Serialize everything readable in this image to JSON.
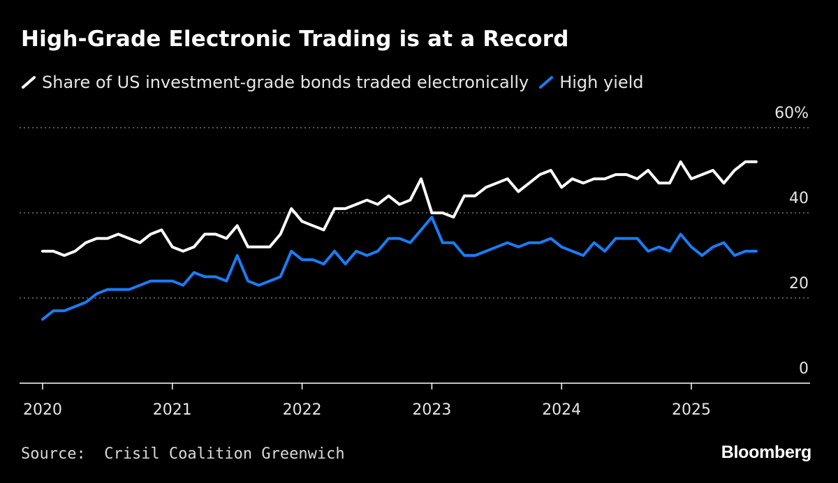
{
  "title": "High-Grade Electronic Trading is at a Record",
  "source_label": "Source:",
  "source_text": "Crisil Coalition Greenwich",
  "brand": "Bloomberg",
  "colors": {
    "background": "#000000",
    "ig": "#ffffff",
    "hy": "#1a7cf5",
    "grid": "#777777"
  },
  "chart_data": {
    "type": "line",
    "title": "High-Grade Electronic Trading is at a Record",
    "xlabel": "",
    "ylabel": "",
    "ylim": [
      0,
      60
    ],
    "yticks": [
      0,
      20,
      40,
      60
    ],
    "ytick_labels": [
      "0",
      "20",
      "40",
      "60%"
    ],
    "xlim": [
      2020,
      2025.9
    ],
    "xticks": [
      2020,
      2021,
      2022,
      2023,
      2024,
      2025
    ],
    "xtick_labels": [
      "2020",
      "2021",
      "2022",
      "2023",
      "2024",
      "2025"
    ],
    "grid": "horizontal dotted",
    "legend": "top-left",
    "x": [
      2020.0,
      2020.083,
      2020.167,
      2020.25,
      2020.333,
      2020.417,
      2020.5,
      2020.583,
      2020.667,
      2020.75,
      2020.833,
      2020.917,
      2021.0,
      2021.083,
      2021.167,
      2021.25,
      2021.333,
      2021.417,
      2021.5,
      2021.583,
      2021.667,
      2021.75,
      2021.833,
      2021.917,
      2022.0,
      2022.083,
      2022.167,
      2022.25,
      2022.333,
      2022.417,
      2022.5,
      2022.583,
      2022.667,
      2022.75,
      2022.833,
      2022.917,
      2023.0,
      2023.083,
      2023.167,
      2023.25,
      2023.333,
      2023.417,
      2023.5,
      2023.583,
      2023.667,
      2023.75,
      2023.833,
      2023.917,
      2024.0,
      2024.083,
      2024.167,
      2024.25,
      2024.333,
      2024.417,
      2024.5,
      2024.583,
      2024.667,
      2024.75,
      2024.833,
      2024.917,
      2025.0,
      2025.083,
      2025.167,
      2025.25,
      2025.333,
      2025.417,
      2025.5
    ],
    "series": [
      {
        "name": "Share of US investment-grade bonds traded electronically",
        "values": [
          31,
          31,
          30,
          31,
          33,
          34,
          34,
          35,
          34,
          33,
          35,
          36,
          32,
          31,
          32,
          35,
          35,
          34,
          37,
          32,
          32,
          32,
          35,
          41,
          38,
          37,
          36,
          41,
          41,
          42,
          43,
          42,
          44,
          42,
          43,
          48,
          40,
          40,
          39,
          44,
          44,
          46,
          47,
          48,
          45,
          47,
          49,
          50,
          46,
          48,
          47,
          48,
          48,
          49,
          49,
          48,
          50,
          47,
          47,
          52,
          48,
          49,
          50,
          47,
          50,
          52,
          52
        ]
      },
      {
        "name": "High yield",
        "values": [
          15,
          17,
          17,
          18,
          19,
          21,
          22,
          22,
          22,
          23,
          24,
          24,
          24,
          23,
          26,
          25,
          25,
          24,
          30,
          24,
          23,
          24,
          25,
          31,
          29,
          29,
          28,
          31,
          28,
          31,
          30,
          31,
          34,
          34,
          33,
          36,
          39,
          33,
          33,
          30,
          30,
          31,
          32,
          33,
          32,
          33,
          33,
          34,
          32,
          31,
          30,
          33,
          31,
          34,
          34,
          34,
          31,
          32,
          31,
          35,
          32,
          30,
          32,
          33,
          30,
          31,
          31
        ]
      }
    ]
  }
}
